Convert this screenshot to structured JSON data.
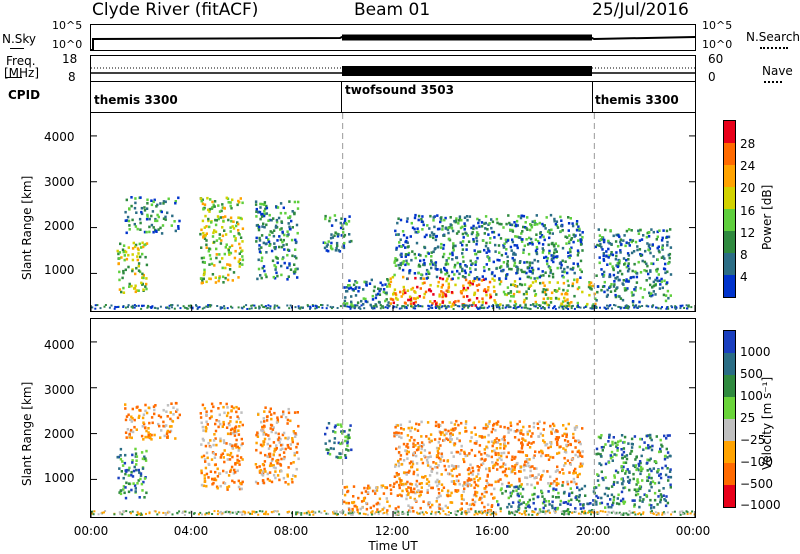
{
  "header": {
    "station": "Clyde River (fitACF)",
    "beam": "Beam 01",
    "date": "25/Jul/2016"
  },
  "top_panels": {
    "nsky_label": "N.Sky",
    "nsearch_label": "N.Search",
    "nsky_ticks": [
      "10^5",
      "10^0"
    ],
    "nsky_ticks_right": [
      "10^5",
      "10^0"
    ],
    "freq_label_1": "Freq.",
    "freq_label_2": "[MHz]",
    "freq_ticks": [
      "18",
      "8"
    ],
    "nave_label": "Nave",
    "nave_ticks": [
      "60",
      "0"
    ],
    "cpid_label": "CPID",
    "cpid_segments": [
      {
        "label": "themis 3300",
        "start_hour": 0,
        "end_hour": 10
      },
      {
        "label": "twofsound 3503",
        "start_hour": 10,
        "end_hour": 20
      },
      {
        "label": "themis 3300",
        "start_hour": 20,
        "end_hour": 24
      }
    ]
  },
  "power_colorbar": {
    "label": "Power [dB]",
    "ticks": [
      "28",
      "24",
      "20",
      "16",
      "12",
      "8",
      "4"
    ],
    "colors": [
      "#e8001a",
      "#ff6a00",
      "#ffa300",
      "#d2d200",
      "#5fcf3d",
      "#2f8a3f",
      "#2b6d85",
      "#0033cc"
    ]
  },
  "velocity_colorbar": {
    "label": "Velocity [m s⁻¹]",
    "ticks": [
      "1000",
      "500",
      "100",
      "25",
      "−25",
      "−100",
      "−500",
      "−1000"
    ],
    "colors": [
      "#1a3fbf",
      "#2a6d85",
      "#2f8a3f",
      "#6ad43a",
      "#c0c0c0",
      "#ffa300",
      "#ff6a00",
      "#e8001a"
    ]
  },
  "chart_data": {
    "type": "heatmap",
    "xlabel": "Time UT",
    "ylabel": "Slant Range [km]",
    "x_ticks": [
      "00:00",
      "04:00",
      "08:00",
      "12:00",
      "16:00",
      "20:00",
      "00:00"
    ],
    "x_range_hours": [
      0,
      24
    ],
    "y_ticks": [
      "1000",
      "2000",
      "3000",
      "4000"
    ],
    "y_range_km": [
      180,
      4500
    ],
    "panels": [
      {
        "name": "Power",
        "regions": [
          {
            "t0": 1.3,
            "t1": 3.5,
            "r0": 1900,
            "r1": 2700,
            "class": "low"
          },
          {
            "t0": 1.0,
            "t1": 2.2,
            "r0": 600,
            "r1": 1700,
            "class": "mid"
          },
          {
            "t0": 4.3,
            "t1": 6.0,
            "r0": 800,
            "r1": 2700,
            "class": "mid"
          },
          {
            "t0": 6.5,
            "t1": 8.2,
            "r0": 900,
            "r1": 2600,
            "class": "low"
          },
          {
            "t0": 9.2,
            "t1": 10.3,
            "r0": 1500,
            "r1": 2300,
            "class": "low"
          },
          {
            "t0": 10.0,
            "t1": 11.8,
            "r0": 300,
            "r1": 900,
            "class": "low"
          },
          {
            "t0": 11.8,
            "t1": 16.0,
            "r0": 300,
            "r1": 950,
            "class": "high"
          },
          {
            "t0": 16.0,
            "t1": 20.0,
            "r0": 300,
            "r1": 900,
            "class": "mid"
          },
          {
            "t0": 12.0,
            "t1": 19.5,
            "r0": 900,
            "r1": 2300,
            "class": "low"
          },
          {
            "t0": 20.0,
            "t1": 23.0,
            "r0": 400,
            "r1": 2000,
            "class": "low"
          }
        ]
      },
      {
        "name": "Velocity",
        "regions": [
          {
            "t0": 1.3,
            "t1": 3.5,
            "r0": 1900,
            "r1": 2700,
            "class": "neg"
          },
          {
            "t0": 1.0,
            "t1": 2.2,
            "r0": 600,
            "r1": 1700,
            "class": "pos"
          },
          {
            "t0": 4.3,
            "t1": 6.0,
            "r0": 800,
            "r1": 2700,
            "class": "neg"
          },
          {
            "t0": 6.5,
            "t1": 8.2,
            "r0": 900,
            "r1": 2600,
            "class": "neg"
          },
          {
            "t0": 9.2,
            "t1": 10.3,
            "r0": 1500,
            "r1": 2300,
            "class": "pos"
          },
          {
            "t0": 10.0,
            "t1": 11.8,
            "r0": 300,
            "r1": 900,
            "class": "neg"
          },
          {
            "t0": 11.8,
            "t1": 16.0,
            "r0": 300,
            "r1": 950,
            "class": "neg"
          },
          {
            "t0": 16.0,
            "t1": 20.0,
            "r0": 300,
            "r1": 900,
            "class": "pos"
          },
          {
            "t0": 12.0,
            "t1": 19.5,
            "r0": 900,
            "r1": 2300,
            "class": "neg"
          },
          {
            "t0": 20.0,
            "t1": 23.0,
            "r0": 400,
            "r1": 2000,
            "class": "pos"
          }
        ]
      }
    ]
  }
}
